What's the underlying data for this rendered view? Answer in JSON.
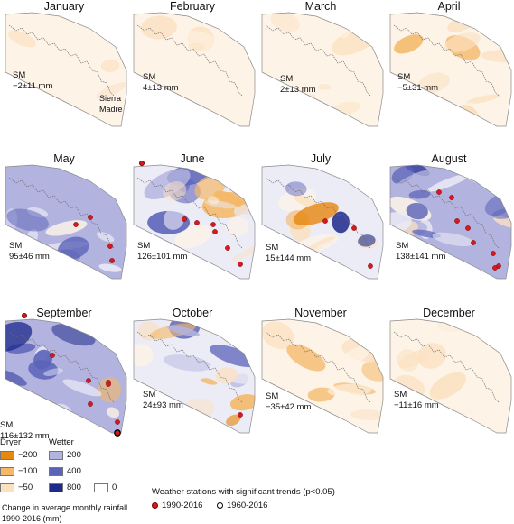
{
  "months": [
    {
      "name": "January",
      "sm": "SM",
      "sm_value": "−2±11 mm",
      "tone": "dry",
      "intensity": 0.22,
      "dots": 0
    },
    {
      "name": "February",
      "sm": "SM",
      "sm_value": "4±13 mm",
      "tone": "dry",
      "intensity": 0.18,
      "dots": 0
    },
    {
      "name": "March",
      "sm": "SM",
      "sm_value": "2±13 mm",
      "tone": "dry",
      "intensity": 0.25,
      "dots": 0
    },
    {
      "name": "April",
      "sm": "SM",
      "sm_value": "−5±31 mm",
      "tone": "dry",
      "intensity": 0.45,
      "dots": 0
    },
    {
      "name": "May",
      "sm": "SM",
      "sm_value": "95±46 mm",
      "tone": "wet",
      "intensity": 0.45,
      "dots": 4
    },
    {
      "name": "June",
      "sm": "SM",
      "sm_value": "126±101 mm",
      "tone": "mixed",
      "intensity": 0.65,
      "dots": 6
    },
    {
      "name": "July",
      "sm": "SM",
      "sm_value": "15±144 mm",
      "tone": "mixed",
      "intensity": 0.75,
      "dots": 3
    },
    {
      "name": "August",
      "sm": "SM",
      "sm_value": "138±141 mm",
      "tone": "wet",
      "intensity": 0.75,
      "dots": 8
    },
    {
      "name": "September",
      "sm": "SM",
      "sm_value": "116±132 mm",
      "tone": "wet",
      "intensity": 0.8,
      "dots": 7
    },
    {
      "name": "October",
      "sm": "SM",
      "sm_value": "24±93 mm",
      "tone": "mixed",
      "intensity": 0.7,
      "dots": 1
    },
    {
      "name": "November",
      "sm": "SM",
      "sm_value": "−35±42 mm",
      "tone": "dry",
      "intensity": 0.5,
      "dots": 0
    },
    {
      "name": "December",
      "sm": "SM",
      "sm_value": "−11±16 mm",
      "tone": "dry",
      "intensity": 0.25,
      "dots": 0
    }
  ],
  "range_label": "Sierra\nMadre",
  "legend": {
    "dryer_label": "Dryer",
    "wetter_label": "Wetter",
    "dry_bins": [
      {
        "label": "−200",
        "color": "#e6870f"
      },
      {
        "label": "−100",
        "color": "#f4b868"
      },
      {
        "label": "−50",
        "color": "#fbe1c2"
      }
    ],
    "wet_bins": [
      {
        "label": "200",
        "color": "#b3b3df"
      },
      {
        "label": "400",
        "color": "#5b63b8"
      },
      {
        "label": "800",
        "color": "#1d2a8a"
      },
      {
        "label": "0",
        "color": "#ffffff"
      }
    ],
    "caption": "Change in average monthly rainfall 1990-2016 (mm)"
  },
  "stations_legend": {
    "title": "Weather stations with significant trends (p<0.05)",
    "items": [
      {
        "label": "1990-2016",
        "kind": "filled",
        "color": "#d7191c"
      },
      {
        "label": "1960-2016",
        "kind": "ring",
        "color": "#000000"
      }
    ]
  }
}
